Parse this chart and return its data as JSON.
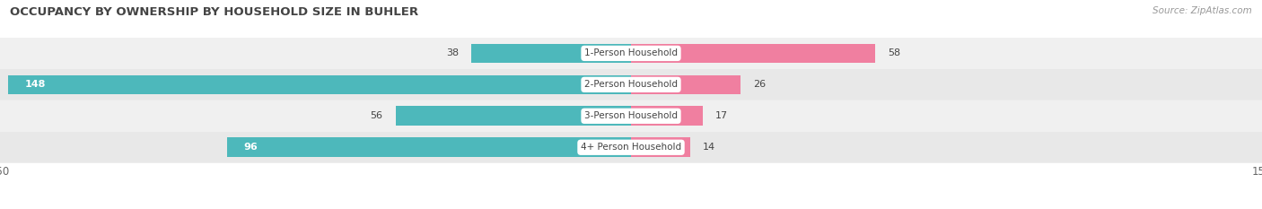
{
  "title": "OCCUPANCY BY OWNERSHIP BY HOUSEHOLD SIZE IN BUHLER",
  "source": "Source: ZipAtlas.com",
  "categories": [
    "1-Person Household",
    "2-Person Household",
    "3-Person Household",
    "4+ Person Household"
  ],
  "owner_values": [
    38,
    148,
    56,
    96
  ],
  "renter_values": [
    58,
    26,
    17,
    14
  ],
  "owner_color": "#4db8bb",
  "renter_color": "#f07fa0",
  "row_bg_light": "#f0f0f0",
  "row_bg_dark": "#e8e8e8",
  "axis_max": 150,
  "figsize": [
    14.06,
    2.33
  ],
  "dpi": 100,
  "title_color": "#444444",
  "source_color": "#999999",
  "label_color": "#444444",
  "value_color_dark": "#444444",
  "value_color_white": "#ffffff"
}
